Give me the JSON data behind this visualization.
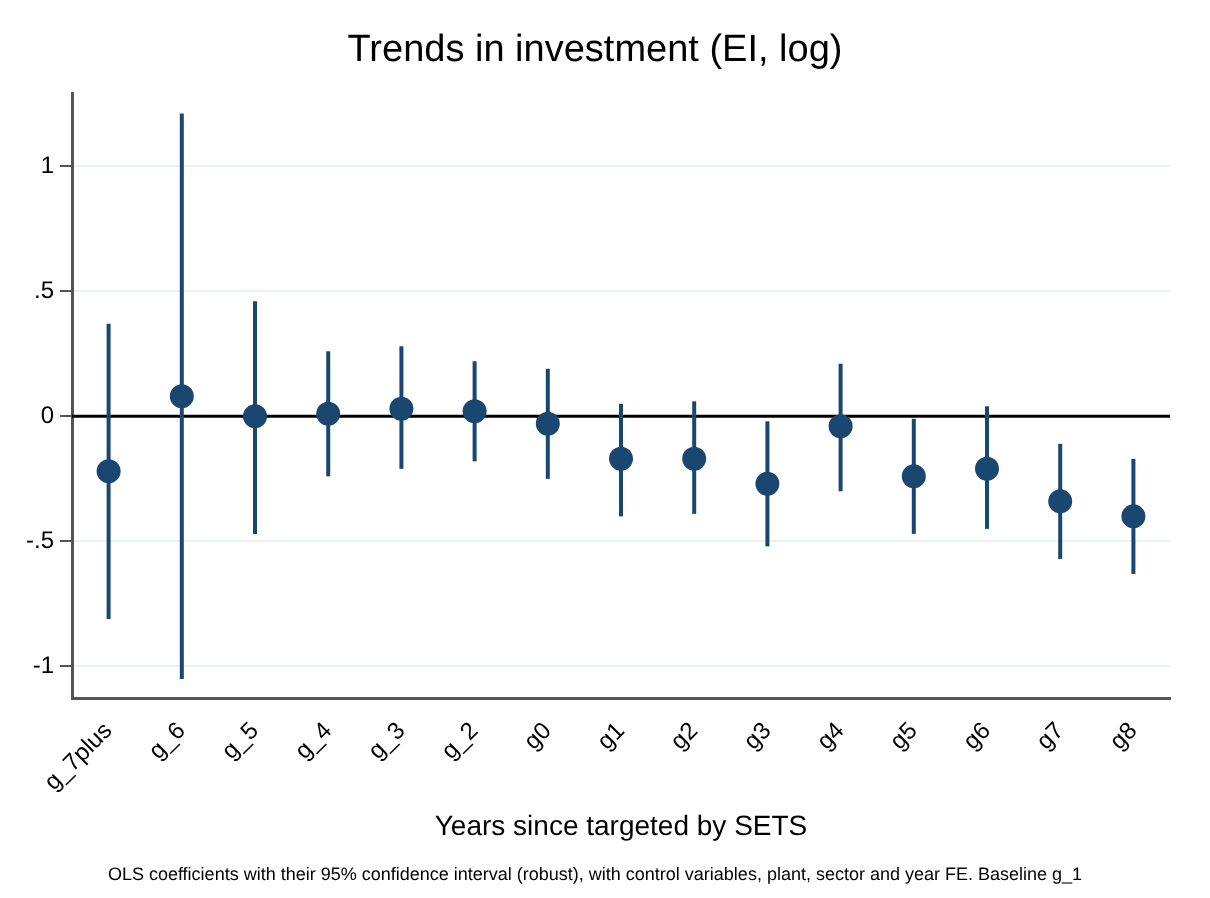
{
  "chart_data": {
    "type": "scatter",
    "title": "Trends in investment (EI, log)",
    "xlabel": "Years since targeted by SETS",
    "annotations": [
      "OLS coefficients with their 95% confidence interval (robust), with control variables, plant, sector and year FE. Baseline g_1"
    ],
    "categories": [
      "g_7plus",
      "g_6",
      "g_5",
      "g_4",
      "g_3",
      "g_2",
      "g0",
      "g1",
      "g2",
      "g3",
      "g4",
      "g5",
      "g6",
      "g7",
      "g8"
    ],
    "series": [
      {
        "color": "#1a476f",
        "values": [
          -0.22,
          0.08,
          0,
          0.01,
          0.03,
          0.02,
          -0.03,
          -0.17,
          -0.17,
          -0.27,
          -0.04,
          -0.24,
          -0.21,
          -0.34,
          -0.4
        ],
        "errors": [
          [
            -0.81,
            0.37
          ],
          [
            -1.05,
            1.21
          ],
          [
            -0.47,
            0.46
          ],
          [
            -0.24,
            0.26
          ],
          [
            -0.21,
            0.28
          ],
          [
            -0.18,
            0.22
          ],
          [
            -0.25,
            0.19
          ],
          [
            -0.4,
            0.05
          ],
          [
            -0.39,
            0.06
          ],
          [
            -0.52,
            -0.02
          ],
          [
            -0.3,
            0.21
          ],
          [
            -0.47,
            -0.01
          ],
          [
            -0.45,
            0.04
          ],
          [
            -0.57,
            -0.11
          ],
          [
            -0.63,
            -0.17
          ]
        ]
      }
    ],
    "ylim": [
      -1.13,
      1.29
    ],
    "yticks": [
      {
        "value": -1,
        "label": "-1"
      },
      {
        "value": -0.5,
        "label": "-.5"
      },
      0,
      {
        "value": 0.5,
        "label": ".5"
      },
      1
    ],
    "ref_lines": [
      {
        "axis": "y",
        "value": 0,
        "color": "#000000"
      }
    ],
    "grid": "y",
    "legend": false,
    "marker": "circle"
  }
}
